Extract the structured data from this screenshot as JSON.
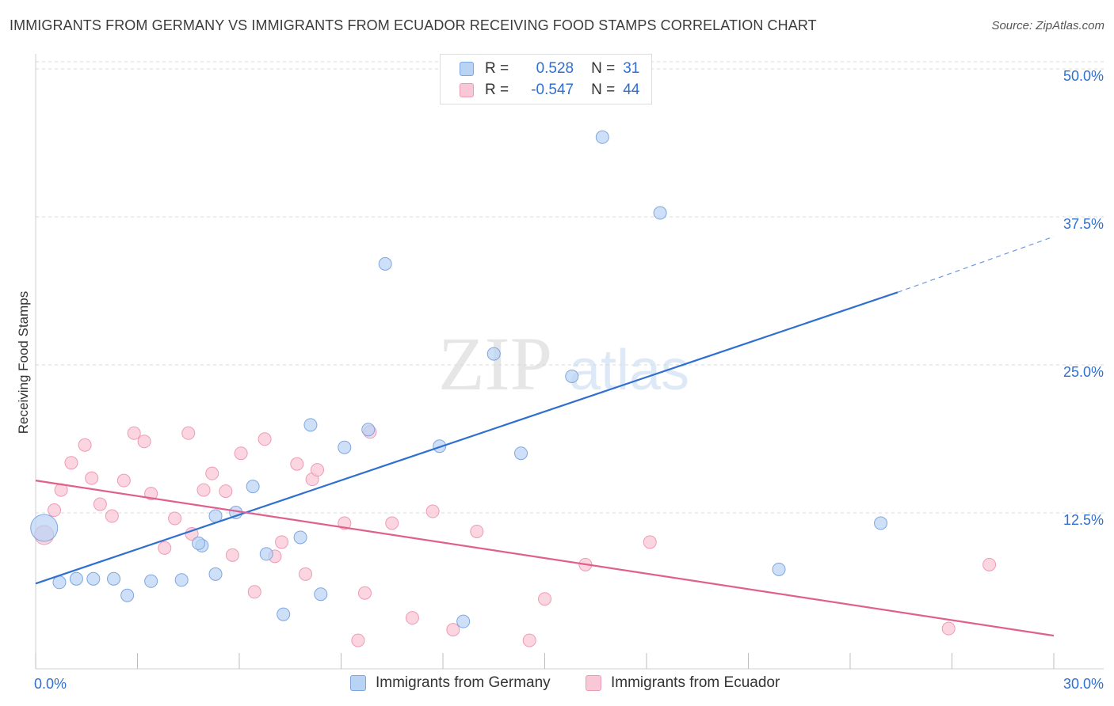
{
  "header": {
    "title": "IMMIGRANTS FROM GERMANY VS IMMIGRANTS FROM ECUADOR RECEIVING FOOD STAMPS CORRELATION CHART",
    "source": "Source: ZipAtlas.com"
  },
  "watermark": {
    "zip": "ZIP",
    "atlas": "atlas"
  },
  "legend": {
    "germany": {
      "r_label": "R =",
      "r_value": "0.528",
      "n_label": "N =",
      "n_value": "31"
    },
    "ecuador": {
      "r_label": "R =",
      "r_value": "-0.547",
      "n_label": "N =",
      "n_value": "44"
    }
  },
  "colors": {
    "germany_fill": "#b9d3f5",
    "germany_stroke": "#7ea6e0",
    "germany_line": "#2f6fd0",
    "ecuador_fill": "#f9c8d7",
    "ecuador_stroke": "#ef9ab5",
    "ecuador_line": "#e0608c",
    "grid": "#d8d8d8",
    "axis_text": "#2f6fd0"
  },
  "chart_data": {
    "type": "scatter",
    "title": "IMMIGRANTS FROM GERMANY VS IMMIGRANTS FROM ECUADOR RECEIVING FOOD STAMPS CORRELATION CHART",
    "xlabel": "",
    "ylabel": "Receiving Food Stamps",
    "xlim": [
      0,
      30
    ],
    "ylim": [
      0,
      50
    ],
    "x_tick_labels": [
      "0.0%",
      "30.0%"
    ],
    "y_ticks": [
      12.5,
      25.0,
      37.5,
      50.0
    ],
    "y_tick_labels": [
      "12.5%",
      "25.0%",
      "37.5%",
      "50.0%"
    ],
    "grid": true,
    "series": [
      {
        "name": "Immigrants from Germany",
        "r": 0.528,
        "n": 31,
        "points": [
          [
            0.25,
            11.9
          ],
          [
            0.7,
            7.3
          ],
          [
            1.2,
            7.6
          ],
          [
            1.7,
            7.6
          ],
          [
            2.3,
            7.6
          ],
          [
            2.7,
            6.2
          ],
          [
            3.4,
            7.4
          ],
          [
            4.3,
            7.5
          ],
          [
            4.9,
            10.4
          ],
          [
            4.8,
            10.6
          ],
          [
            5.3,
            12.9
          ],
          [
            5.3,
            8.0
          ],
          [
            5.9,
            13.2
          ],
          [
            6.4,
            15.4
          ],
          [
            6.8,
            9.7
          ],
          [
            7.3,
            4.6
          ],
          [
            7.8,
            11.1
          ],
          [
            8.1,
            20.6
          ],
          [
            8.4,
            6.3
          ],
          [
            9.1,
            18.7
          ],
          [
            9.8,
            20.2
          ],
          [
            10.3,
            34.2
          ],
          [
            11.9,
            18.8
          ],
          [
            12.6,
            4.0
          ],
          [
            13.5,
            26.6
          ],
          [
            14.3,
            18.2
          ],
          [
            15.8,
            24.7
          ],
          [
            16.7,
            44.9
          ],
          [
            18.4,
            38.5
          ],
          [
            21.9,
            8.4
          ],
          [
            24.9,
            12.3
          ]
        ],
        "sizes": [
          34,
          16,
          16,
          16,
          16,
          16,
          16,
          16,
          16,
          16,
          16,
          16,
          16,
          16,
          16,
          16,
          16,
          16,
          16,
          16,
          16,
          16,
          16,
          16,
          16,
          16,
          16,
          16,
          16,
          16,
          16
        ],
        "trend": {
          "x0": 0,
          "y0": 7.2,
          "x1": 25.4,
          "y1": 31.8,
          "x_dash_end": 30,
          "y_dash_end": 36.5
        }
      },
      {
        "name": "Immigrants from Ecuador",
        "r": -0.547,
        "n": 44,
        "points": [
          [
            0.25,
            11.3
          ],
          [
            0.55,
            13.4
          ],
          [
            0.75,
            15.1
          ],
          [
            1.05,
            17.4
          ],
          [
            1.45,
            18.9
          ],
          [
            1.65,
            16.1
          ],
          [
            1.9,
            13.9
          ],
          [
            2.25,
            12.9
          ],
          [
            2.6,
            15.9
          ],
          [
            2.9,
            19.9
          ],
          [
            3.2,
            19.2
          ],
          [
            3.4,
            14.8
          ],
          [
            3.8,
            10.2
          ],
          [
            4.1,
            12.7
          ],
          [
            4.5,
            19.9
          ],
          [
            4.6,
            11.4
          ],
          [
            4.95,
            15.1
          ],
          [
            5.2,
            16.5
          ],
          [
            5.6,
            15.0
          ],
          [
            5.8,
            9.6
          ],
          [
            6.05,
            18.2
          ],
          [
            6.45,
            6.5
          ],
          [
            6.75,
            19.4
          ],
          [
            7.05,
            9.5
          ],
          [
            7.25,
            10.7
          ],
          [
            7.7,
            17.3
          ],
          [
            7.95,
            8.0
          ],
          [
            8.15,
            16.0
          ],
          [
            8.3,
            16.8
          ],
          [
            9.1,
            12.3
          ],
          [
            9.5,
            2.4
          ],
          [
            9.7,
            6.4
          ],
          [
            9.85,
            20.0
          ],
          [
            10.5,
            12.3
          ],
          [
            11.1,
            4.3
          ],
          [
            11.7,
            13.3
          ],
          [
            12.3,
            3.3
          ],
          [
            13.0,
            11.6
          ],
          [
            14.55,
            2.4
          ],
          [
            15.0,
            5.9
          ],
          [
            16.2,
            8.8
          ],
          [
            18.1,
            10.7
          ],
          [
            26.9,
            3.4
          ],
          [
            28.1,
            8.8
          ]
        ],
        "sizes": [
          24,
          16,
          16,
          16,
          16,
          16,
          16,
          16,
          16,
          16,
          16,
          16,
          16,
          16,
          16,
          16,
          16,
          16,
          16,
          16,
          16,
          16,
          16,
          16,
          16,
          16,
          16,
          16,
          16,
          16,
          16,
          16,
          16,
          16,
          16,
          16,
          16,
          16,
          16,
          16,
          16,
          16,
          16,
          16
        ],
        "trend": {
          "x0": 0,
          "y0": 15.9,
          "x1": 30,
          "y1": 2.8
        }
      }
    ]
  },
  "bottom_legend": {
    "germany_label": "Immigrants from Germany",
    "ecuador_label": "Immigrants from Ecuador"
  }
}
